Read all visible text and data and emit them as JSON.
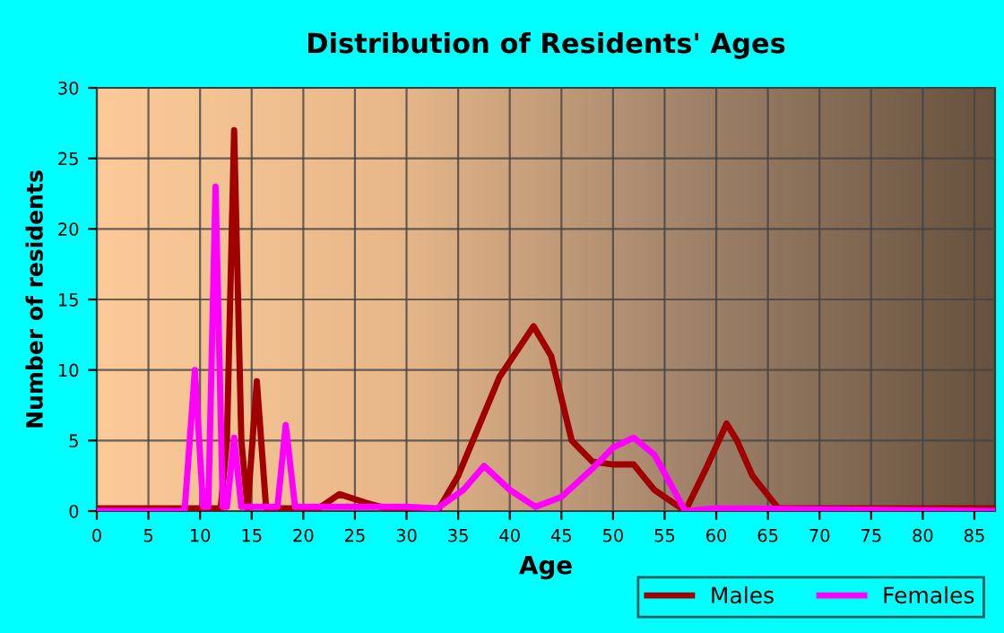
{
  "chart_data": {
    "type": "line",
    "title": "Distribution of Residents' Ages",
    "xlabel": "Age",
    "ylabel": "Number of residents",
    "xlim": [
      0,
      87
    ],
    "xticks": [
      0,
      5,
      10,
      15,
      20,
      25,
      30,
      35,
      40,
      45,
      50,
      55,
      60,
      65,
      70,
      75,
      80,
      85
    ],
    "ylim": [
      0,
      30
    ],
    "yticks": [
      0,
      5,
      10,
      15,
      20,
      25,
      30
    ],
    "grid": true,
    "legend": "bottom right",
    "marker": "none",
    "line_style": "solid",
    "series": [
      {
        "name": "Males",
        "color": "#a00000",
        "x": [
          0,
          12,
          12.6,
          13.3,
          14,
          14.6,
          15.5,
          16.4,
          17,
          20,
          21.5,
          23.5,
          26,
          28,
          30,
          33,
          35,
          37,
          39,
          42.3,
          44,
          46,
          48,
          50,
          52,
          54,
          57,
          59,
          61,
          62,
          63.5,
          66,
          87
        ],
        "values": [
          0.2,
          0.2,
          5,
          27,
          5,
          0.2,
          9.2,
          0.2,
          0.2,
          0.2,
          0.2,
          1.2,
          0.6,
          0.2,
          0,
          0,
          2.5,
          6,
          9.5,
          13.1,
          11,
          5,
          3.5,
          3.3,
          3.3,
          1.5,
          0,
          3,
          6.2,
          5,
          2.5,
          0.2,
          0.2
        ]
      },
      {
        "name": "Females",
        "color": "#ff00ff",
        "x": [
          0,
          8.5,
          9.5,
          10.3,
          10.8,
          11.5,
          12.2,
          12.6,
          13.3,
          14,
          15,
          16.5,
          17.5,
          18.3,
          19.2,
          20,
          30,
          33,
          35.5,
          37.5,
          40,
          42.5,
          45,
          48,
          50,
          52,
          54,
          55.5,
          57,
          60,
          87
        ],
        "values": [
          0,
          0,
          10,
          0.3,
          0.3,
          23,
          0.3,
          0.3,
          5.2,
          0.3,
          0.3,
          0.3,
          0.3,
          6.1,
          0.3,
          0.3,
          0.3,
          0.2,
          1.5,
          3.2,
          1.5,
          0.3,
          1,
          3,
          4.5,
          5.2,
          4,
          2,
          0,
          0.2,
          0
        ]
      }
    ]
  }
}
